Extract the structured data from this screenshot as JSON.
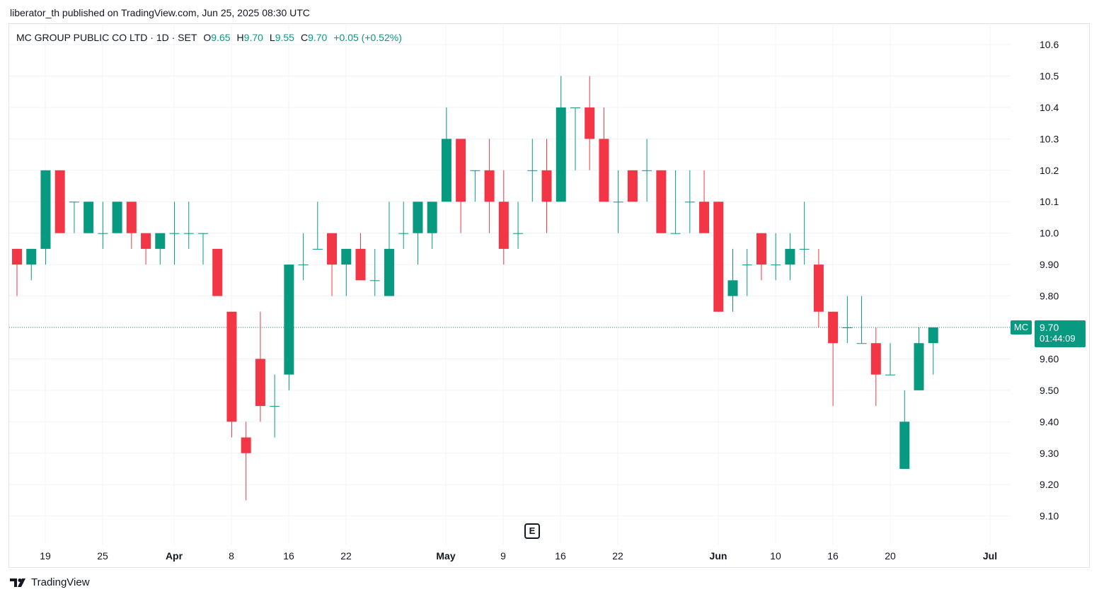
{
  "published": "liberator_th published on TradingView.com, Jun 25, 2025 08:30 UTC",
  "legend": {
    "symbol": "MC GROUP PUBLIC CO LTD · 1D · SET",
    "o_label": "O",
    "o": "9.65",
    "h_label": "H",
    "h": "9.70",
    "l_label": "L",
    "l": "9.55",
    "c_label": "C",
    "c": "9.70",
    "change": "+0.05 (+0.52%)"
  },
  "price_tag": {
    "ticker": "MC",
    "price": "9.70",
    "countdown": "01:44:09"
  },
  "event_badge": "E",
  "brand": "TradingView",
  "colors": {
    "up": "#089981",
    "down": "#f23645",
    "grid": "#f0f3fa",
    "text": "#131722"
  },
  "chart_data": {
    "type": "candlestick",
    "y_axis": {
      "range": [
        9.0,
        10.65
      ],
      "ticks": [
        "10.6",
        "10.5",
        "10.4",
        "10.3",
        "10.2",
        "10.1",
        "10.0",
        "9.90",
        "9.80",
        "9.70",
        "9.60",
        "9.50",
        "9.40",
        "9.30",
        "9.20",
        "9.10"
      ],
      "position": "right"
    },
    "x_axis": {
      "labels": [
        "19",
        "25",
        "Apr",
        "8",
        "16",
        "22",
        "May",
        "9",
        "16",
        "22",
        "Jun",
        "10",
        "16",
        "20",
        "Jul"
      ],
      "bold_labels": [
        "Apr",
        "May",
        "Jun",
        "Jul"
      ]
    },
    "last_price_line": 9.7,
    "grid": true,
    "candles": [
      {
        "date": "Mar 17",
        "o": 9.95,
        "h": 9.95,
        "l": 9.8,
        "c": 9.9
      },
      {
        "date": "Mar 18",
        "o": 9.9,
        "h": 9.95,
        "l": 9.85,
        "c": 9.95
      },
      {
        "date": "Mar 19",
        "o": 9.95,
        "h": 10.2,
        "l": 9.9,
        "c": 10.2
      },
      {
        "date": "Mar 20",
        "o": 10.2,
        "h": 10.2,
        "l": 10.0,
        "c": 10.0
      },
      {
        "date": "Mar 21",
        "o": 10.1,
        "h": 10.1,
        "l": 10.0,
        "c": 10.1
      },
      {
        "date": "Mar 24",
        "o": 10.0,
        "h": 10.1,
        "l": 10.0,
        "c": 10.1
      },
      {
        "date": "Mar 25",
        "o": 10.0,
        "h": 10.1,
        "l": 9.95,
        "c": 10.0
      },
      {
        "date": "Mar 26",
        "o": 10.0,
        "h": 10.1,
        "l": 10.0,
        "c": 10.1
      },
      {
        "date": "Mar 27",
        "o": 10.1,
        "h": 10.1,
        "l": 9.95,
        "c": 10.0
      },
      {
        "date": "Mar 28",
        "o": 10.0,
        "h": 10.0,
        "l": 9.9,
        "c": 9.95
      },
      {
        "date": "Mar 31",
        "o": 9.95,
        "h": 10.0,
        "l": 9.9,
        "c": 10.0
      },
      {
        "date": "Apr 1",
        "o": 10.0,
        "h": 10.1,
        "l": 9.9,
        "c": 10.0
      },
      {
        "date": "Apr 2",
        "o": 10.0,
        "h": 10.1,
        "l": 9.95,
        "c": 10.0
      },
      {
        "date": "Apr 3",
        "o": 10.0,
        "h": 10.0,
        "l": 9.9,
        "c": 10.0
      },
      {
        "date": "Apr 4",
        "o": 9.95,
        "h": 9.95,
        "l": 9.8,
        "c": 9.8
      },
      {
        "date": "Apr 8",
        "o": 9.75,
        "h": 9.75,
        "l": 9.35,
        "c": 9.4
      },
      {
        "date": "Apr 9",
        "o": 9.35,
        "h": 9.4,
        "l": 9.15,
        "c": 9.3
      },
      {
        "date": "Apr 10",
        "o": 9.6,
        "h": 9.75,
        "l": 9.4,
        "c": 9.45
      },
      {
        "date": "Apr 11",
        "o": 9.45,
        "h": 9.55,
        "l": 9.35,
        "c": 9.45
      },
      {
        "date": "Apr 16",
        "o": 9.55,
        "h": 9.9,
        "l": 9.5,
        "c": 9.9
      },
      {
        "date": "Apr 17",
        "o": 9.9,
        "h": 10.0,
        "l": 9.85,
        "c": 9.9
      },
      {
        "date": "Apr 18",
        "o": 9.95,
        "h": 10.1,
        "l": 9.95,
        "c": 9.95
      },
      {
        "date": "Apr 21",
        "o": 10.0,
        "h": 10.0,
        "l": 9.8,
        "c": 9.9
      },
      {
        "date": "Apr 22",
        "o": 9.9,
        "h": 9.95,
        "l": 9.8,
        "c": 9.95
      },
      {
        "date": "Apr 23",
        "o": 9.95,
        "h": 10.0,
        "l": 9.85,
        "c": 9.85
      },
      {
        "date": "Apr 24",
        "o": 9.85,
        "h": 9.95,
        "l": 9.8,
        "c": 9.85
      },
      {
        "date": "Apr 25",
        "o": 9.8,
        "h": 10.1,
        "l": 9.8,
        "c": 9.95
      },
      {
        "date": "Apr 28",
        "o": 10.0,
        "h": 10.1,
        "l": 9.95,
        "c": 10.0
      },
      {
        "date": "Apr 29",
        "o": 10.0,
        "h": 10.1,
        "l": 9.9,
        "c": 10.1
      },
      {
        "date": "Apr 30",
        "o": 10.0,
        "h": 10.1,
        "l": 9.95,
        "c": 10.1
      },
      {
        "date": "May 2",
        "o": 10.1,
        "h": 10.4,
        "l": 10.1,
        "c": 10.3
      },
      {
        "date": "May 6",
        "o": 10.3,
        "h": 10.3,
        "l": 10.0,
        "c": 10.1
      },
      {
        "date": "May 7",
        "o": 10.2,
        "h": 10.2,
        "l": 10.1,
        "c": 10.2
      },
      {
        "date": "May 8",
        "o": 10.2,
        "h": 10.3,
        "l": 10.0,
        "c": 10.1
      },
      {
        "date": "May 9",
        "o": 10.1,
        "h": 10.2,
        "l": 9.9,
        "c": 9.95
      },
      {
        "date": "May 13",
        "o": 10.0,
        "h": 10.1,
        "l": 9.95,
        "c": 10.0
      },
      {
        "date": "May 14",
        "o": 10.2,
        "h": 10.3,
        "l": 10.1,
        "c": 10.2
      },
      {
        "date": "May 15",
        "o": 10.2,
        "h": 10.3,
        "l": 10.0,
        "c": 10.1
      },
      {
        "date": "May 16",
        "o": 10.1,
        "h": 10.5,
        "l": 10.1,
        "c": 10.4
      },
      {
        "date": "May 19",
        "o": 10.4,
        "h": 10.4,
        "l": 10.2,
        "c": 10.4
      },
      {
        "date": "May 20",
        "o": 10.4,
        "h": 10.5,
        "l": 10.2,
        "c": 10.3
      },
      {
        "date": "May 21",
        "o": 10.3,
        "h": 10.4,
        "l": 10.1,
        "c": 10.1
      },
      {
        "date": "May 22",
        "o": 10.1,
        "h": 10.2,
        "l": 10.0,
        "c": 10.1
      },
      {
        "date": "May 23",
        "o": 10.2,
        "h": 10.2,
        "l": 10.1,
        "c": 10.1
      },
      {
        "date": "May 26",
        "o": 10.2,
        "h": 10.3,
        "l": 10.1,
        "c": 10.2
      },
      {
        "date": "May 27",
        "o": 10.2,
        "h": 10.2,
        "l": 10.0,
        "c": 10.0
      },
      {
        "date": "May 28",
        "o": 10.0,
        "h": 10.2,
        "l": 10.0,
        "c": 10.0
      },
      {
        "date": "May 29",
        "o": 10.1,
        "h": 10.2,
        "l": 10.0,
        "c": 10.1
      },
      {
        "date": "May 30",
        "o": 10.1,
        "h": 10.2,
        "l": 10.0,
        "c": 10.0
      },
      {
        "date": "Jun 2",
        "o": 10.1,
        "h": 10.1,
        "l": 9.75,
        "c": 9.75
      },
      {
        "date": "Jun 4",
        "o": 9.8,
        "h": 9.95,
        "l": 9.75,
        "c": 9.85
      },
      {
        "date": "Jun 5",
        "o": 9.9,
        "h": 9.95,
        "l": 9.8,
        "c": 9.9
      },
      {
        "date": "Jun 6",
        "o": 10.0,
        "h": 10.0,
        "l": 9.85,
        "c": 9.9
      },
      {
        "date": "Jun 9",
        "o": 9.9,
        "h": 10.0,
        "l": 9.85,
        "c": 9.9
      },
      {
        "date": "Jun 10",
        "o": 9.9,
        "h": 10.0,
        "l": 9.85,
        "c": 9.95
      },
      {
        "date": "Jun 11",
        "o": 9.95,
        "h": 10.1,
        "l": 9.9,
        "c": 9.95
      },
      {
        "date": "Jun 12",
        "o": 9.9,
        "h": 9.95,
        "l": 9.7,
        "c": 9.75
      },
      {
        "date": "Jun 13",
        "o": 9.75,
        "h": 9.75,
        "l": 9.45,
        "c": 9.65
      },
      {
        "date": "Jun 16",
        "o": 9.7,
        "h": 9.8,
        "l": 9.65,
        "c": 9.7
      },
      {
        "date": "Jun 17",
        "o": 9.65,
        "h": 9.8,
        "l": 9.65,
        "c": 9.65
      },
      {
        "date": "Jun 18",
        "o": 9.65,
        "h": 9.7,
        "l": 9.45,
        "c": 9.55
      },
      {
        "date": "Jun 19",
        "o": 9.55,
        "h": 9.65,
        "l": 9.55,
        "c": 9.55
      },
      {
        "date": "Jun 20",
        "o": 9.25,
        "h": 9.5,
        "l": 9.25,
        "c": 9.4
      },
      {
        "date": "Jun 23",
        "o": 9.5,
        "h": 9.7,
        "l": 9.5,
        "c": 9.65
      },
      {
        "date": "Jun 24",
        "o": 9.65,
        "h": 9.7,
        "l": 9.55,
        "c": 9.7
      }
    ]
  }
}
